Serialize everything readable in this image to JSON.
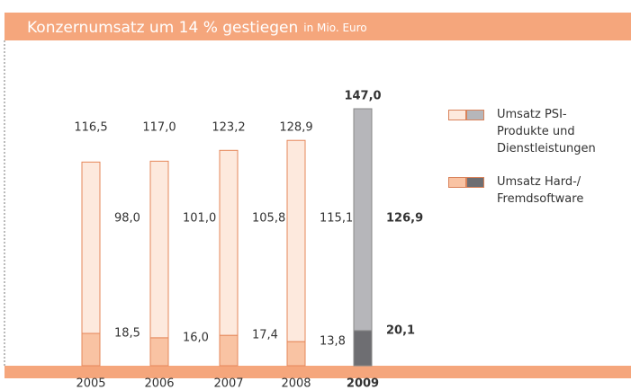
{
  "chart_data": {
    "type": "stacked-bar",
    "title": "Konzernumsatz um 14 % gestiegen",
    "subtitle": "in Mio. Euro",
    "categories": [
      "2005",
      "2006",
      "2007",
      "2008",
      "2009"
    ],
    "highlight": "2009",
    "series": [
      {
        "name": "Umsatz Hard-/ Fremdsoftware",
        "colors": [
          "#f9c3a3",
          "#f9c3a3",
          "#f9c3a3",
          "#f9c3a3",
          "#6e6e72"
        ],
        "values": [
          18.5,
          16.0,
          17.4,
          13.8,
          20.1
        ],
        "value_labels": [
          "18,5",
          "16,0",
          "17,4",
          "13,8",
          "20,1"
        ]
      },
      {
        "name": "Umsatz PSI-Produkte und Dienstleistungen",
        "colors": [
          "#fde9dd",
          "#fde9dd",
          "#fde9dd",
          "#fde9dd",
          "#b6b6ba"
        ],
        "values": [
          98.0,
          101.0,
          105.8,
          115.1,
          126.9
        ],
        "value_labels": [
          "98,0",
          "101,0",
          "105,8",
          "115,1",
          "126,9"
        ]
      }
    ],
    "totals": [
      116.5,
      117.0,
      123.2,
      128.9,
      147.0
    ],
    "total_labels": [
      "116,5",
      "117,0",
      "123,2",
      "128,9",
      "147,0"
    ]
  }
}
